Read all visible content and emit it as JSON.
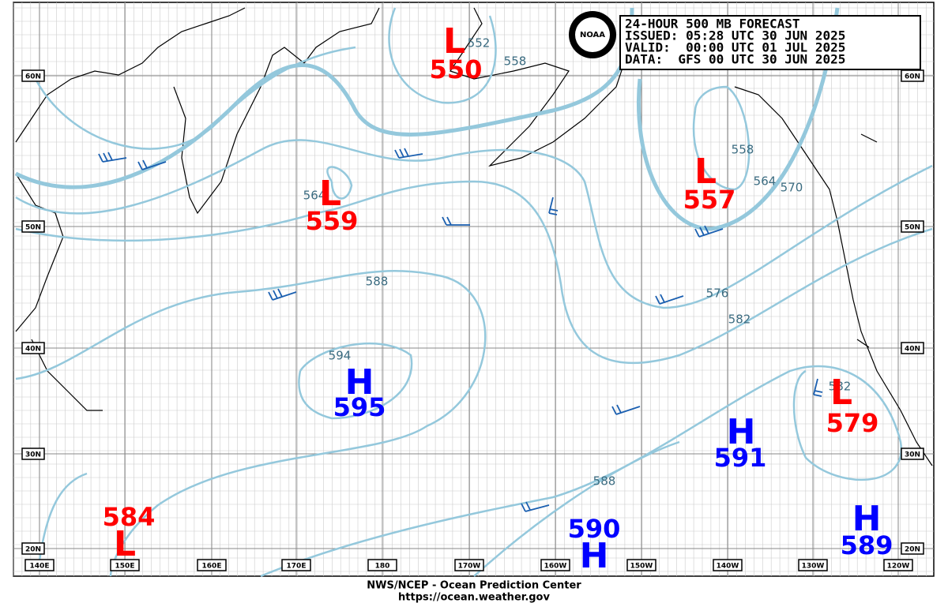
{
  "header": {
    "lines": [
      "24-HOUR 500 MB FORECAST",
      "ISSUED: 05:28 UTC 30 JUN 2025",
      "VALID:  00:00 UTC 01 JUL 2025",
      "DATA:  GFS 00 UTC 30 JUN 2025"
    ]
  },
  "logo": "NOAA",
  "footer": {
    "agency": "NWS/NCEP - Ocean Prediction Center",
    "url": "https://ocean.weather.gov"
  },
  "latitude_labels": [
    "60N",
    "50N",
    "40N",
    "30N",
    "20N"
  ],
  "longitude_labels": [
    "140E",
    "150E",
    "160E",
    "170E",
    "180",
    "170W",
    "160W",
    "150W",
    "140W",
    "130W",
    "120W"
  ],
  "centers": [
    {
      "type": "L",
      "value": 550
    },
    {
      "type": "L",
      "value": 559
    },
    {
      "type": "L",
      "value": 557
    },
    {
      "type": "L",
      "value": 579
    },
    {
      "type": "L",
      "value": 584
    },
    {
      "type": "H",
      "value": 595
    },
    {
      "type": "H",
      "value": 591
    },
    {
      "type": "H",
      "value": 590
    },
    {
      "type": "H",
      "value": 589
    }
  ],
  "contour_labels": [
    552,
    558,
    564,
    588,
    594,
    558,
    564,
    570,
    576,
    582,
    582,
    588
  ]
}
